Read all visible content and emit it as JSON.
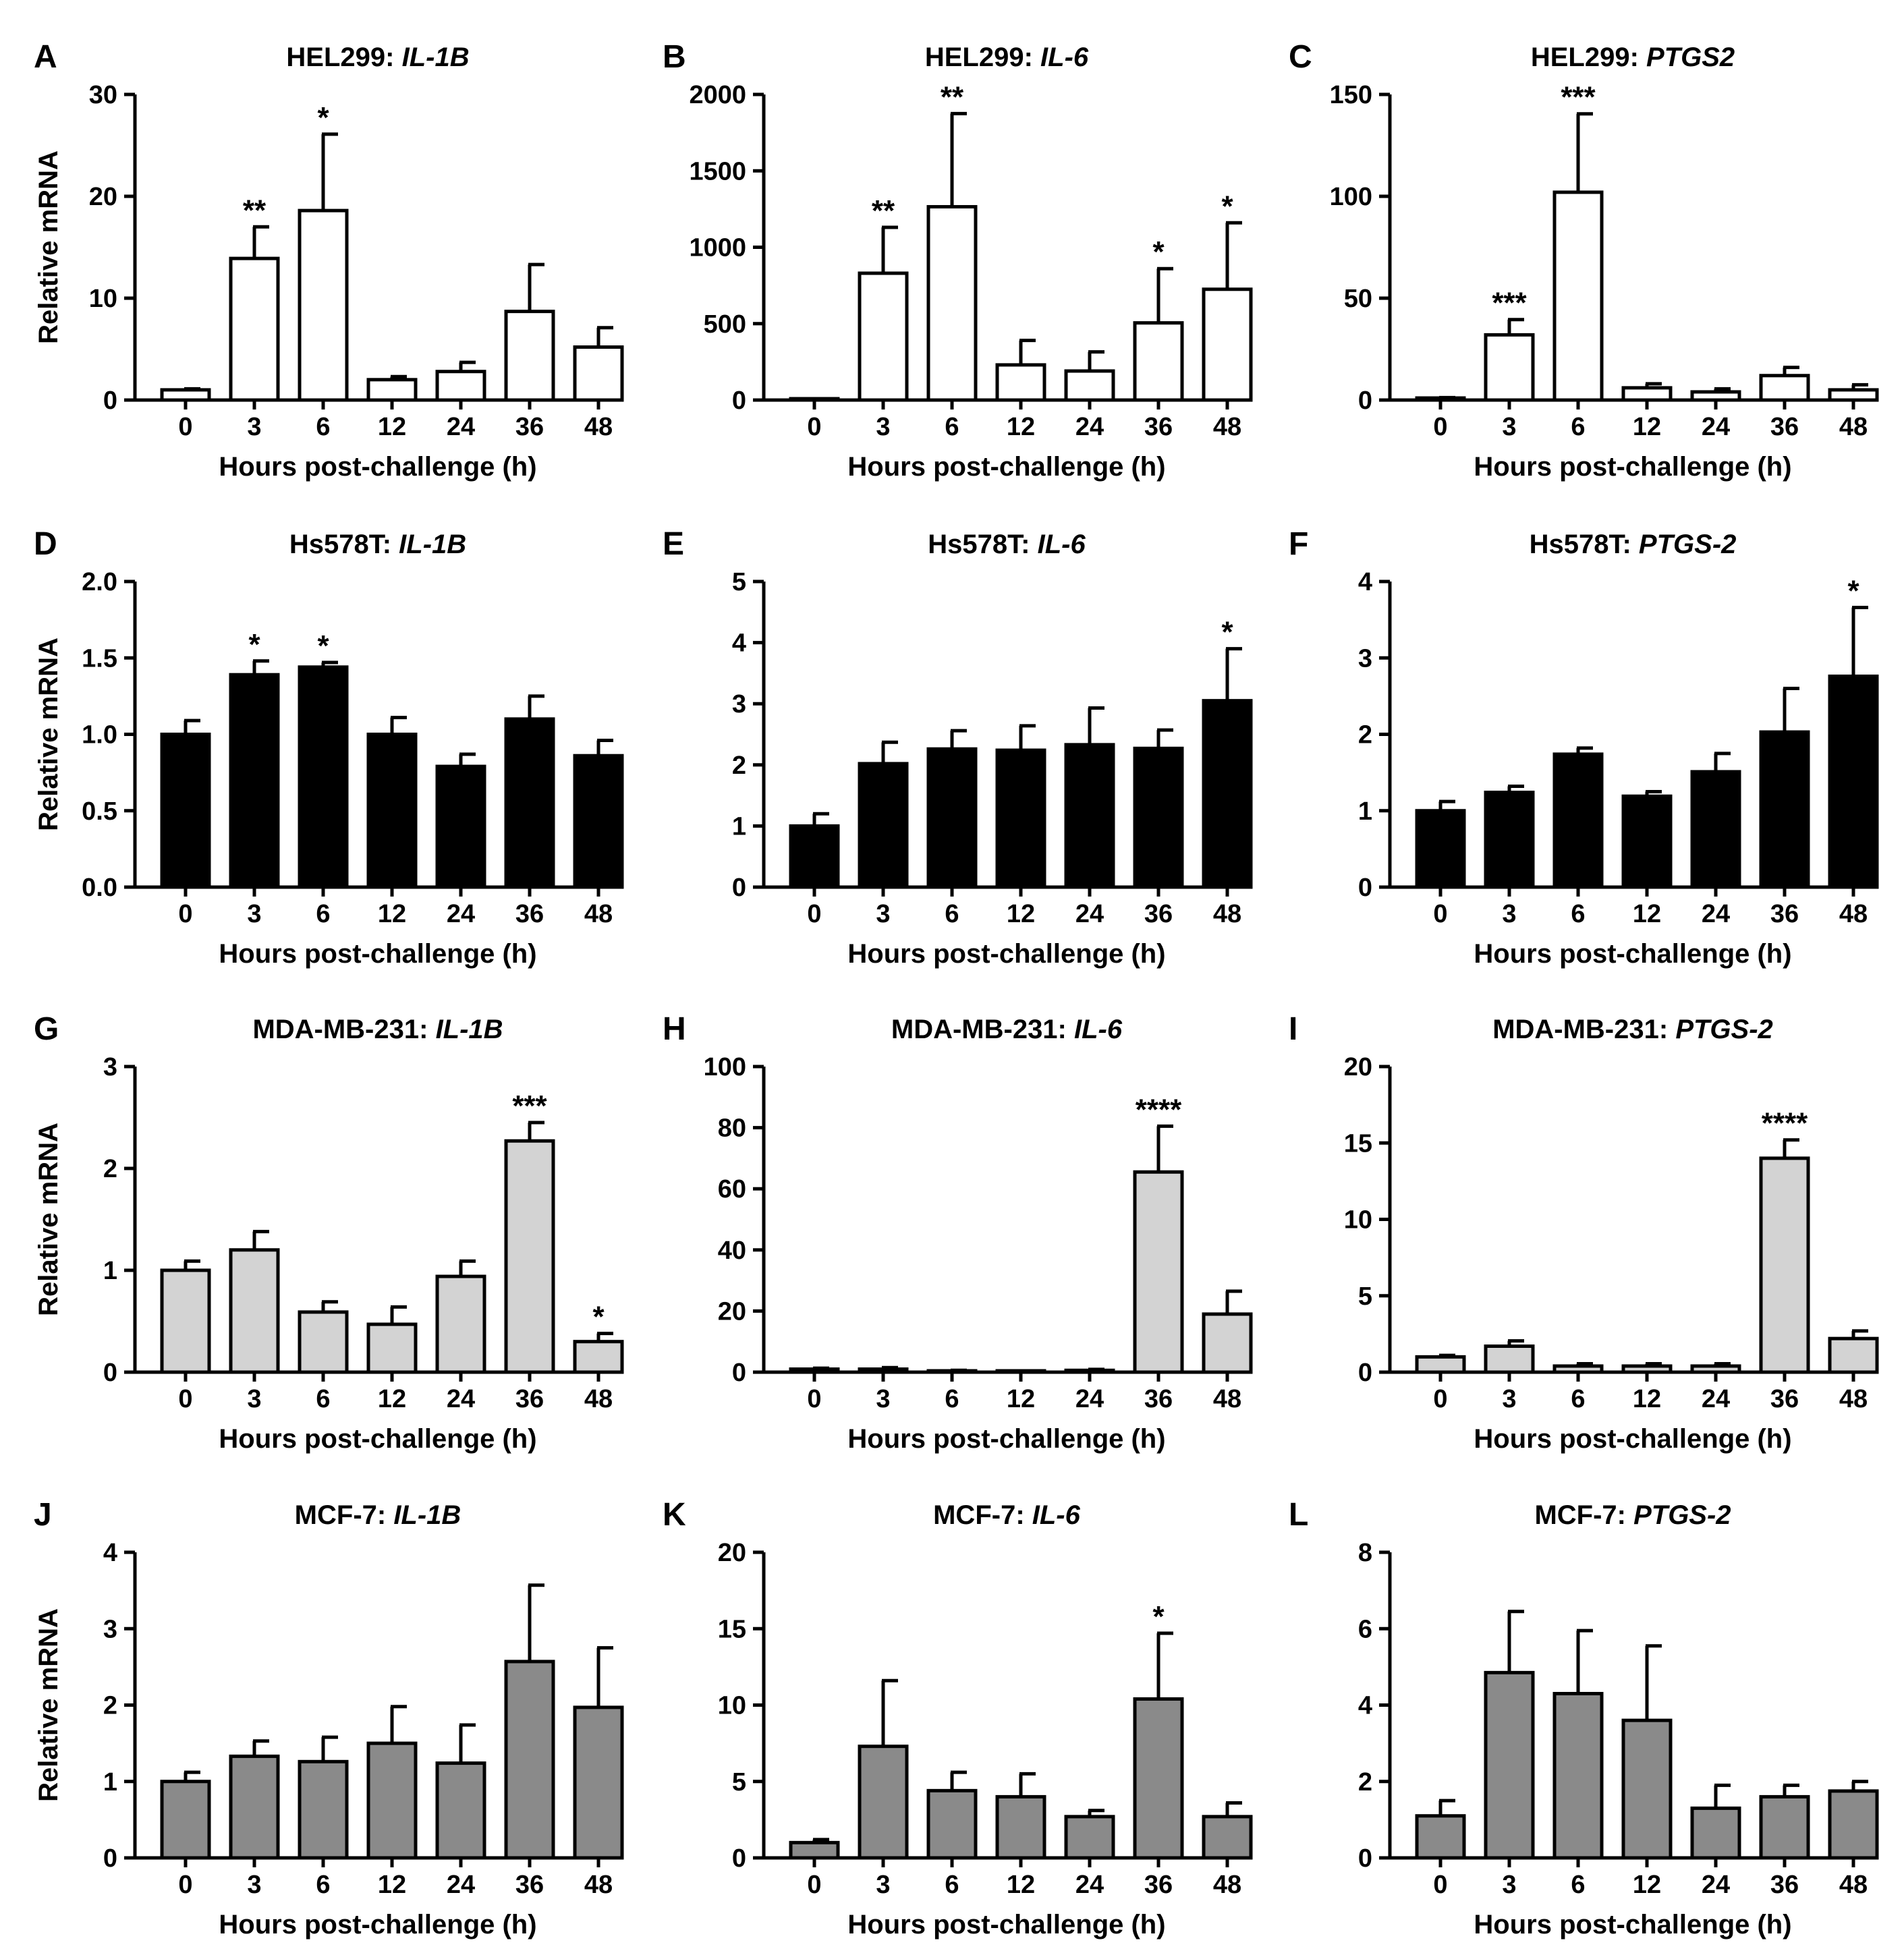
{
  "figure": {
    "panel_count": 12,
    "colors": {
      "HEL299": "#ffffff",
      "Hs578T": "#000000",
      "MDA-MB-231": "#d3d3d3",
      "MCF-7": "#8a8a8a",
      "outline": "#000000"
    }
  },
  "chart_data": [
    {
      "panel": "A",
      "type": "bar",
      "cell_line": "HEL299",
      "gene": "IL-1B",
      "color": "#ffffff",
      "title_prefix": "HEL299: ",
      "title_gene": "IL-1B",
      "categories": [
        "0",
        "3",
        "6",
        "12",
        "24",
        "36",
        "48"
      ],
      "values": [
        1.0,
        13.9,
        18.6,
        2.0,
        2.8,
        8.7,
        5.2
      ],
      "errors": [
        0.1,
        3.1,
        7.5,
        0.3,
        0.9,
        4.6,
        1.9
      ],
      "significance": [
        "",
        "**",
        "*",
        "",
        "",
        "",
        ""
      ],
      "ylim": [
        0,
        30
      ],
      "yticks": [
        0,
        10,
        20,
        30
      ],
      "ytick_labels": [
        "0",
        "10",
        "20",
        "30"
      ],
      "xlabel": "Hours post-challenge (h)",
      "ylabel": "Relative mRNA"
    },
    {
      "panel": "B",
      "type": "bar",
      "cell_line": "HEL299",
      "gene": "IL-6",
      "color": "#ffffff",
      "title_prefix": "HEL299: ",
      "title_gene": "IL-6",
      "categories": [
        "0",
        "3",
        "6",
        "12",
        "24",
        "36",
        "48"
      ],
      "values": [
        1,
        830,
        1265,
        230,
        190,
        505,
        725
      ],
      "errors": [
        0,
        300,
        610,
        160,
        125,
        355,
        435
      ],
      "significance": [
        "",
        "**",
        "**",
        "",
        "",
        "*",
        "*"
      ],
      "ylim": [
        0,
        2000
      ],
      "yticks": [
        0,
        500,
        1000,
        1500,
        2000
      ],
      "ytick_labels": [
        "0",
        "500",
        "1000",
        "1500",
        "2000"
      ],
      "xlabel": "Hours post-challenge (h)",
      "ylabel": ""
    },
    {
      "panel": "C",
      "type": "bar",
      "cell_line": "HEL299",
      "gene": "PTGS2",
      "color": "#ffffff",
      "title_prefix": "HEL299: ",
      "title_gene": "PTGS2",
      "categories": [
        "0",
        "3",
        "6",
        "12",
        "24",
        "36",
        "48"
      ],
      "values": [
        1.0,
        32.0,
        102.0,
        6.0,
        4.0,
        12.0,
        5.0
      ],
      "errors": [
        0.2,
        7.5,
        38.5,
        2.0,
        1.5,
        4.0,
        2.5
      ],
      "significance": [
        "",
        "***",
        "***",
        "",
        "",
        "",
        ""
      ],
      "ylim": [
        0,
        150
      ],
      "yticks": [
        0,
        50,
        100,
        150
      ],
      "ytick_labels": [
        "0",
        "50",
        "100",
        "150"
      ],
      "xlabel": "Hours post-challenge (h)",
      "ylabel": ""
    },
    {
      "panel": "D",
      "type": "bar",
      "cell_line": "Hs578T",
      "gene": "IL-1B",
      "color": "#000000",
      "title_prefix": "Hs578T: ",
      "title_gene": "IL-1B",
      "categories": [
        "0",
        "3",
        "6",
        "12",
        "24",
        "36",
        "48"
      ],
      "values": [
        1.0,
        1.39,
        1.44,
        1.0,
        0.79,
        1.1,
        0.86
      ],
      "errors": [
        0.09,
        0.09,
        0.03,
        0.11,
        0.08,
        0.15,
        0.1
      ],
      "significance": [
        "",
        "*",
        "*",
        "",
        "",
        "",
        ""
      ],
      "ylim": [
        0,
        2.0
      ],
      "yticks": [
        0,
        0.5,
        1.0,
        1.5,
        2.0
      ],
      "ytick_labels": [
        "0.0",
        "0.5",
        "1.0",
        "1.5",
        "2.0"
      ],
      "xlabel": "Hours post-challenge (h)",
      "ylabel": "Relative mRNA"
    },
    {
      "panel": "E",
      "type": "bar",
      "cell_line": "Hs578T",
      "gene": "IL-6",
      "color": "#000000",
      "title_prefix": "Hs578T: ",
      "title_gene": "IL-6",
      "categories": [
        "0",
        "3",
        "6",
        "12",
        "24",
        "36",
        "48"
      ],
      "values": [
        1.0,
        2.02,
        2.26,
        2.24,
        2.33,
        2.27,
        3.05
      ],
      "errors": [
        0.2,
        0.35,
        0.3,
        0.4,
        0.6,
        0.3,
        0.85
      ],
      "significance": [
        "",
        "",
        "",
        "",
        "",
        "",
        "*"
      ],
      "ylim": [
        0,
        5
      ],
      "yticks": [
        0,
        1,
        2,
        3,
        4,
        5
      ],
      "ytick_labels": [
        "0",
        "1",
        "2",
        "3",
        "4",
        "5"
      ],
      "xlabel": "Hours post-challenge (h)",
      "ylabel": ""
    },
    {
      "panel": "F",
      "type": "bar",
      "cell_line": "Hs578T",
      "gene": "PTGS-2",
      "color": "#000000",
      "title_prefix": "Hs578T: ",
      "title_gene": "PTGS-2",
      "categories": [
        "0",
        "3",
        "6",
        "12",
        "24",
        "36",
        "48"
      ],
      "values": [
        1.0,
        1.24,
        1.74,
        1.19,
        1.51,
        2.03,
        2.76
      ],
      "errors": [
        0.12,
        0.08,
        0.08,
        0.06,
        0.24,
        0.57,
        0.9
      ],
      "significance": [
        "",
        "",
        "",
        "",
        "",
        "",
        "*"
      ],
      "ylim": [
        0,
        4
      ],
      "yticks": [
        0,
        1,
        2,
        3,
        4
      ],
      "ytick_labels": [
        "0",
        "1",
        "2",
        "3",
        "4"
      ],
      "xlabel": "Hours post-challenge (h)",
      "ylabel": ""
    },
    {
      "panel": "G",
      "type": "bar",
      "cell_line": "MDA-MB-231",
      "gene": "IL-1B",
      "color": "#d3d3d3",
      "title_prefix": "MDA-MB-231: ",
      "title_gene": "IL-1B",
      "categories": [
        "0",
        "3",
        "6",
        "12",
        "24",
        "36",
        "48"
      ],
      "values": [
        1.0,
        1.2,
        0.59,
        0.47,
        0.94,
        2.27,
        0.3
      ],
      "errors": [
        0.09,
        0.18,
        0.1,
        0.17,
        0.15,
        0.18,
        0.08
      ],
      "significance": [
        "",
        "",
        "",
        "",
        "",
        "***",
        "*"
      ],
      "ylim": [
        0,
        3
      ],
      "yticks": [
        0,
        1,
        2,
        3
      ],
      "ytick_labels": [
        "0",
        "1",
        "2",
        "3"
      ],
      "xlabel": "Hours post-challenge (h)",
      "ylabel": "Relative mRNA"
    },
    {
      "panel": "H",
      "type": "bar",
      "cell_line": "MDA-MB-231",
      "gene": "IL-6",
      "color": "#d3d3d3",
      "title_prefix": "MDA-MB-231: ",
      "title_gene": "IL-6",
      "categories": [
        "0",
        "3",
        "6",
        "12",
        "24",
        "36",
        "48"
      ],
      "values": [
        1.0,
        1.0,
        0.4,
        0.3,
        0.6,
        65.5,
        19.0
      ],
      "errors": [
        0.3,
        0.5,
        0.2,
        0.1,
        0.3,
        15.0,
        7.5
      ],
      "significance": [
        "",
        "",
        "",
        "",
        "",
        "****",
        ""
      ],
      "ylim": [
        0,
        100
      ],
      "yticks": [
        0,
        20,
        40,
        60,
        80,
        100
      ],
      "ytick_labels": [
        "0",
        "20",
        "40",
        "60",
        "80",
        "100"
      ],
      "xlabel": "Hours post-challenge (h)",
      "ylabel": ""
    },
    {
      "panel": "I",
      "type": "bar",
      "cell_line": "MDA-MB-231",
      "gene": "PTGS-2",
      "color": "#d3d3d3",
      "title_prefix": "MDA-MB-231: ",
      "title_gene": "PTGS-2",
      "categories": [
        "0",
        "3",
        "6",
        "12",
        "24",
        "36",
        "48"
      ],
      "values": [
        1.0,
        1.7,
        0.4,
        0.4,
        0.4,
        14.0,
        2.2
      ],
      "errors": [
        0.1,
        0.35,
        0.15,
        0.15,
        0.15,
        1.2,
        0.5
      ],
      "significance": [
        "",
        "",
        "",
        "",
        "",
        "****",
        ""
      ],
      "ylim": [
        0,
        20
      ],
      "yticks": [
        0,
        5,
        10,
        15,
        20
      ],
      "ytick_labels": [
        "0",
        "5",
        "10",
        "15",
        "20"
      ],
      "xlabel": "Hours post-challenge (h)",
      "ylabel": ""
    },
    {
      "panel": "J",
      "type": "bar",
      "cell_line": "MCF-7",
      "gene": "IL-1B",
      "color": "#8a8a8a",
      "title_prefix": "MCF-7: ",
      "title_gene": "IL-1B",
      "categories": [
        "0",
        "3",
        "6",
        "12",
        "24",
        "36",
        "48"
      ],
      "values": [
        1.0,
        1.33,
        1.26,
        1.5,
        1.24,
        2.57,
        1.97
      ],
      "errors": [
        0.12,
        0.2,
        0.32,
        0.48,
        0.5,
        1.0,
        0.78
      ],
      "significance": [
        "",
        "",
        "",
        "",
        "",
        "",
        ""
      ],
      "ylim": [
        0,
        4
      ],
      "yticks": [
        0,
        1,
        2,
        3,
        4
      ],
      "ytick_labels": [
        "0",
        "1",
        "2",
        "3",
        "4"
      ],
      "xlabel": "Hours post-challenge (h)",
      "ylabel": "Relative mRNA"
    },
    {
      "panel": "K",
      "type": "bar",
      "cell_line": "MCF-7",
      "gene": "IL-6",
      "color": "#8a8a8a",
      "title_prefix": "MCF-7: ",
      "title_gene": "IL-6",
      "categories": [
        "0",
        "3",
        "6",
        "12",
        "24",
        "36",
        "48"
      ],
      "values": [
        1.0,
        7.3,
        4.4,
        4.0,
        2.7,
        10.4,
        2.7
      ],
      "errors": [
        0.2,
        4.3,
        1.2,
        1.5,
        0.4,
        4.3,
        0.9
      ],
      "significance": [
        "",
        "",
        "",
        "",
        "",
        "*",
        ""
      ],
      "ylim": [
        0,
        20
      ],
      "yticks": [
        0,
        5,
        10,
        15,
        20
      ],
      "ytick_labels": [
        "0",
        "5",
        "10",
        "15",
        "20"
      ],
      "xlabel": "Hours post-challenge (h)",
      "ylabel": ""
    },
    {
      "panel": "L",
      "type": "bar",
      "cell_line": "MCF-7",
      "gene": "PTGS-2",
      "color": "#8a8a8a",
      "title_prefix": "MCF-7: ",
      "title_gene": "PTGS-2",
      "categories": [
        "0",
        "3",
        "6",
        "12",
        "24",
        "36",
        "48"
      ],
      "values": [
        1.1,
        4.85,
        4.3,
        3.6,
        1.3,
        1.6,
        1.75
      ],
      "errors": [
        0.4,
        1.6,
        1.65,
        1.95,
        0.6,
        0.3,
        0.25
      ],
      "significance": [
        "",
        "",
        "",
        "",
        "",
        "",
        ""
      ],
      "ylim": [
        0,
        8
      ],
      "yticks": [
        0,
        2,
        4,
        6,
        8
      ],
      "ytick_labels": [
        "0",
        "2",
        "4",
        "6",
        "8"
      ],
      "xlabel": "Hours post-challenge (h)",
      "ylabel": ""
    }
  ]
}
